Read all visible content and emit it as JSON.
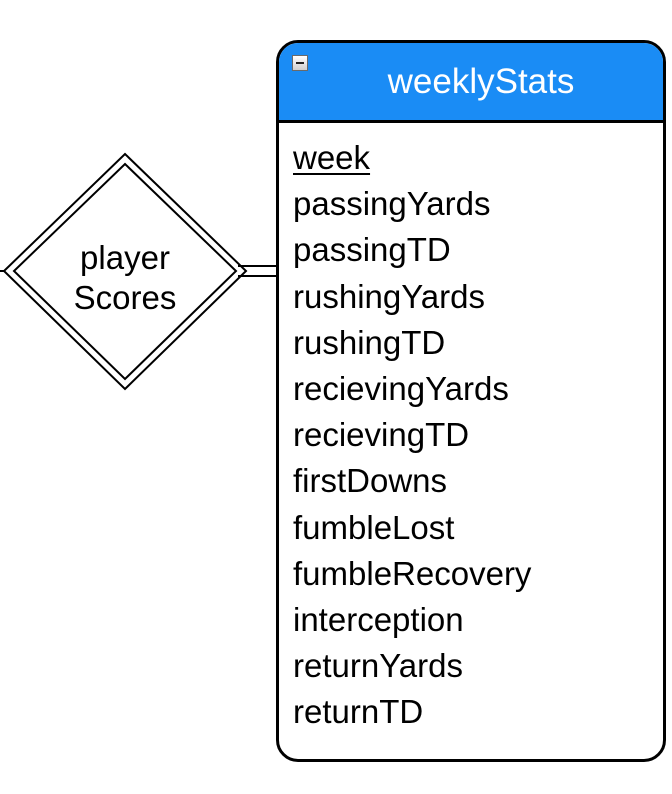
{
  "relationship": {
    "label_line1": "player",
    "label_line2": "Scores"
  },
  "entity": {
    "name": "weeklyStats",
    "header_color": "#1a8cf5",
    "collapse_icon": "minus-square-icon",
    "primary_key": "week",
    "attributes": [
      "passingYards",
      "passingTD",
      "rushingYards",
      "rushingTD",
      "recievingYards",
      "recievingTD",
      "firstDowns",
      "fumbleLost",
      "fumbleRecovery",
      "interception",
      "returnYards",
      "returnTD"
    ]
  }
}
